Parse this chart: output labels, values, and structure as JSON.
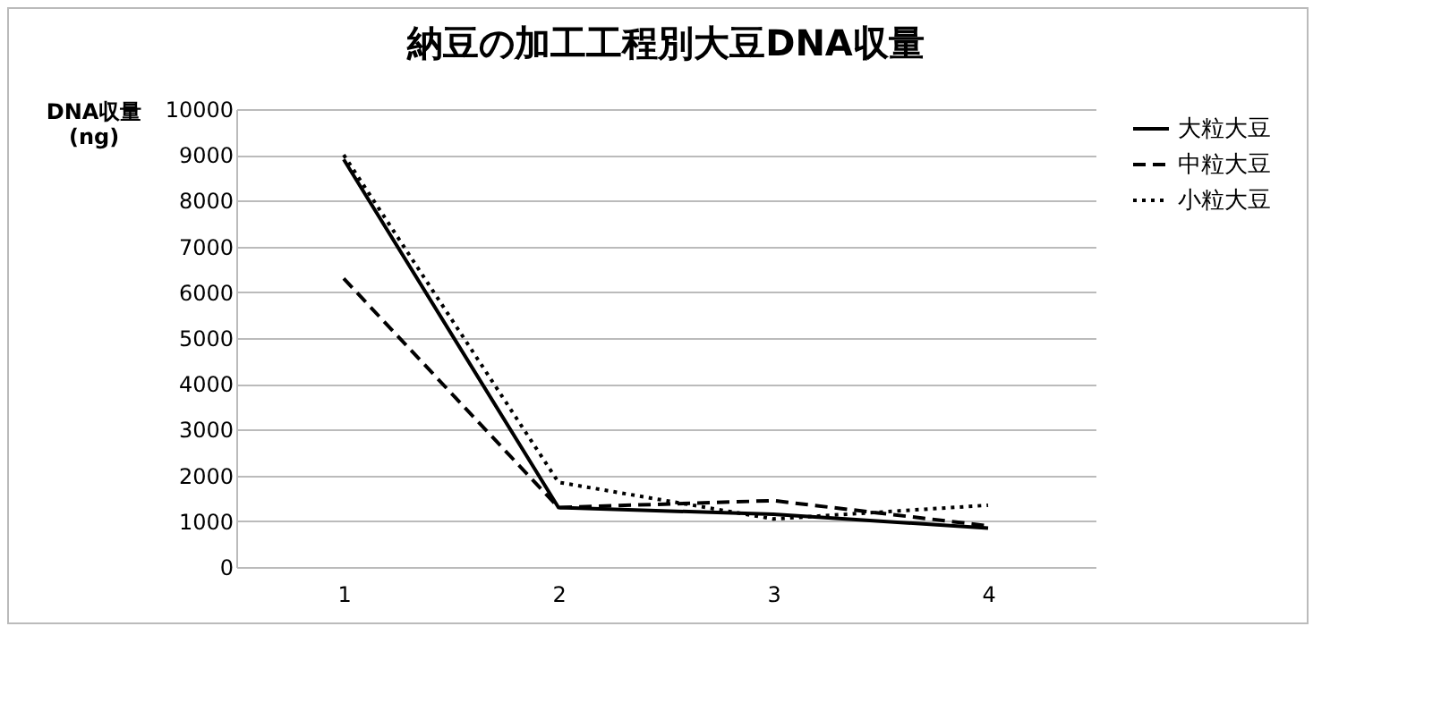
{
  "chart_data": {
    "type": "line",
    "title": "納豆の加工工程別大豆DNA収量",
    "ylabel": "DNA収量\n(ng)",
    "categories": [
      "1",
      "2",
      "3",
      "4"
    ],
    "series": [
      {
        "name": "大粒大豆",
        "color": "#000000",
        "line_style": "solid",
        "values": [
          8900,
          1300,
          1150,
          850
        ]
      },
      {
        "name": "中粒大豆",
        "color": "#000000",
        "line_style": "dashed",
        "values": [
          6300,
          1300,
          1450,
          900
        ]
      },
      {
        "name": "小粒大豆",
        "color": "#000000",
        "line_style": "dotted",
        "values": [
          9000,
          1850,
          1050,
          1350
        ]
      }
    ],
    "ylim": [
      0,
      10000
    ],
    "yticks": [
      0,
      1000,
      2000,
      3000,
      4000,
      5000,
      6000,
      7000,
      8000,
      9000,
      10000
    ],
    "grid": "y",
    "legend": "right"
  }
}
